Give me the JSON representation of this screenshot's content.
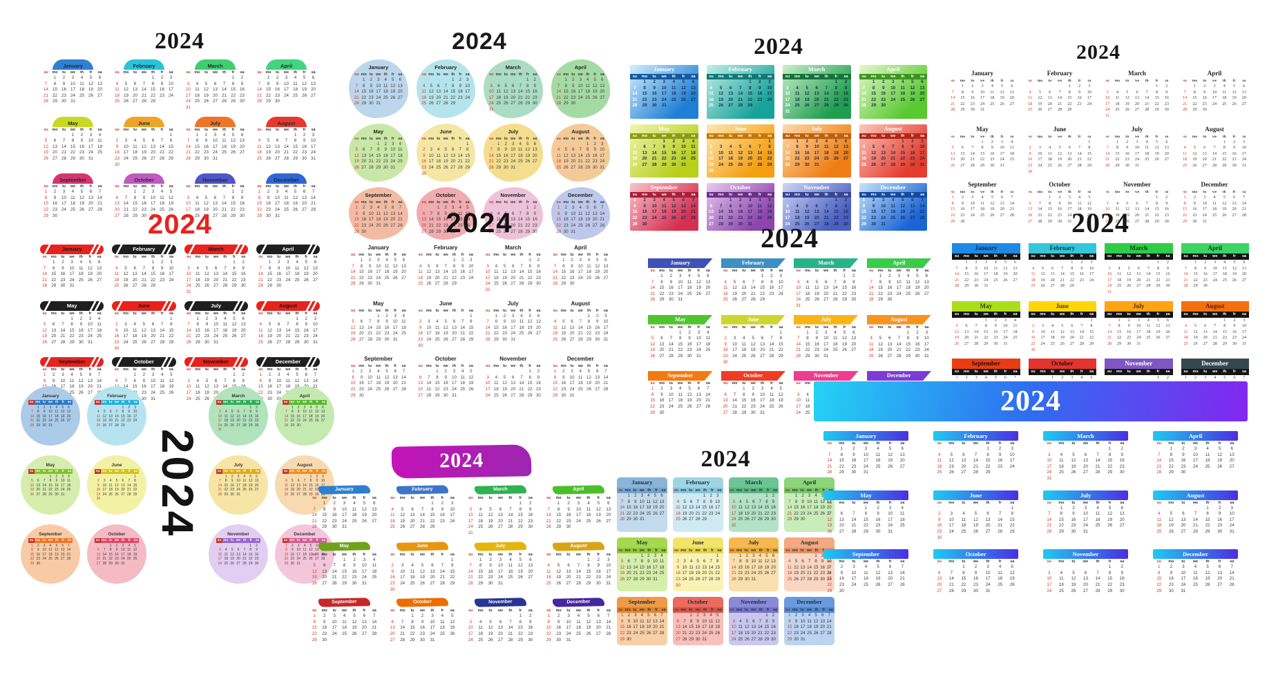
{
  "weekdays": [
    "su",
    "mo",
    "tu",
    "we",
    "th",
    "fr",
    "sa"
  ],
  "colors": {
    "sunday_red": "#c8372d"
  },
  "months": [
    {
      "name": "January",
      "days": 31,
      "start": 1
    },
    {
      "name": "February",
      "days": 29,
      "start": 4
    },
    {
      "name": "March",
      "days": 31,
      "start": 5
    },
    {
      "name": "April",
      "days": 30,
      "start": 1
    },
    {
      "name": "May",
      "days": 31,
      "start": 3
    },
    {
      "name": "June",
      "days": 30,
      "start": 6
    },
    {
      "name": "July",
      "days": 31,
      "start": 1
    },
    {
      "name": "August",
      "days": 31,
      "start": 4
    },
    {
      "name": "September",
      "days": 30,
      "start": 0
    },
    {
      "name": "October",
      "days": 31,
      "start": 2
    },
    {
      "name": "November",
      "days": 30,
      "start": 5
    },
    {
      "name": "December",
      "days": 31,
      "start": 0
    }
  ],
  "panels": [
    {
      "name": "dome-headers",
      "title": "2024",
      "title_color": "#161616",
      "month_colors": [
        [
          "#2f80d2"
        ],
        [
          "#29c3d8"
        ],
        [
          "#3ecf6e"
        ],
        [
          "#43d47f"
        ],
        [
          "#c9d825"
        ],
        [
          "#f0a424"
        ],
        [
          "#ef7426"
        ],
        [
          "#e8382b"
        ],
        [
          "#d63470"
        ],
        [
          "#c05ac0"
        ],
        [
          "#5056c8"
        ],
        [
          "#2f66d2"
        ]
      ]
    },
    {
      "name": "pastel-blobs",
      "title": "2024",
      "title_color": "#1a1a1a",
      "month_colors": [
        [
          "#bcd6ec"
        ],
        [
          "#b6e4ec"
        ],
        [
          "#abdcc4"
        ],
        [
          "#a4dba4"
        ],
        [
          "#c9e7a6"
        ],
        [
          "#f4e7a4"
        ],
        [
          "#f4dd8e"
        ],
        [
          "#f4ca9a"
        ],
        [
          "#f2bca4"
        ],
        [
          "#f0acb0"
        ],
        [
          "#eec2da"
        ],
        [
          "#bec8ec"
        ]
      ]
    },
    {
      "name": "gradient-blocks",
      "title": "2024",
      "title_color": "#161616",
      "month_colors": [
        [
          "#1f7fd4",
          "#155a9e",
          "#d2effe"
        ],
        [
          "#18a39a",
          "#0e7a74",
          "#c2efe8"
        ],
        [
          "#1f9e50",
          "#14733a",
          "#c9efc9"
        ],
        [
          "#58c92f",
          "#3d9420",
          "#e3f8c9"
        ],
        [
          "#b8cf1b",
          "#8a9c10",
          "#eff5b2"
        ],
        [
          "#f59e0f",
          "#c47a08",
          "#fce8b2"
        ],
        [
          "#ef7d13",
          "#bf5f0c",
          "#fcdaaa"
        ],
        [
          "#e43c2f",
          "#b32619",
          "#fcc8ba"
        ],
        [
          "#d63050",
          "#a81f3a",
          "#f9c3ca"
        ],
        [
          "#8e44ad",
          "#6a2f85",
          "#e7caef"
        ],
        [
          "#4a5fc1",
          "#364694",
          "#ced6f3"
        ],
        [
          "#1b66d6",
          "#124a9e",
          "#c6e3f9"
        ]
      ]
    },
    {
      "name": "plain-serif",
      "title": "2024",
      "title_color": "#161616",
      "month_colors": null
    },
    {
      "name": "red-black-striped-bars",
      "title": "2024",
      "title_color": "#e8221d",
      "month_colors": [
        [
          "#e8221c",
          "#141414"
        ],
        [
          "#1f1f1f",
          "#ffffff"
        ],
        [
          "#e8221c",
          "#141414"
        ],
        [
          "#1f1f1f",
          "#ffffff"
        ],
        [
          "#1f1f1f",
          "#ffffff"
        ],
        [
          "#e8221c",
          "#141414"
        ],
        [
          "#1f1f1f",
          "#ffffff"
        ],
        [
          "#e8221c",
          "#141414"
        ],
        [
          "#e8221c",
          "#141414"
        ],
        [
          "#1f1f1f",
          "#ffffff"
        ],
        [
          "#e8221c",
          "#141414"
        ],
        [
          "#1f1f1f",
          "#ffffff"
        ]
      ]
    },
    {
      "name": "plain-sans",
      "title": "2024",
      "title_color": "#111111",
      "month_colors": null
    },
    {
      "name": "pennant-flags",
      "title": "2024",
      "title_color": "#161616",
      "month_colors": [
        [
          "#3f51b5"
        ],
        [
          "#3d8fc4"
        ],
        [
          "#27b389"
        ],
        [
          "#38cc49"
        ],
        [
          "#4fc42f"
        ],
        [
          "#ccd62f"
        ],
        [
          "#fbb417"
        ],
        [
          "#f7941f"
        ],
        [
          "#f27a10"
        ],
        [
          "#ef3c25"
        ],
        [
          "#ee3d8e"
        ],
        [
          "#7a3cd4"
        ]
      ]
    },
    {
      "name": "color-bars-black-week",
      "title": "2024",
      "title_color": "#161616",
      "month_colors": [
        [
          "#1e88e5",
          "#0d2b4e"
        ],
        [
          "#35c6da",
          "#0d3a42"
        ],
        [
          "#2ecc49",
          "#0d3a16"
        ],
        [
          "#3bd465",
          "#0d3a16"
        ],
        [
          "#abdd18",
          "#334010"
        ],
        [
          "#ffd60a",
          "#4a3c06"
        ],
        [
          "#ffa313",
          "#4a2f06"
        ],
        [
          "#f2710e",
          "#5e1d04"
        ],
        [
          "#ea3c12",
          "#201008"
        ],
        [
          "#e5332e",
          "#201008"
        ],
        [
          "#7e57c2",
          "#ffffff"
        ],
        [
          "#37474f",
          "#ffffff"
        ]
      ]
    },
    {
      "name": "circles-vertical-year",
      "title": "2024",
      "title_color": "#131313",
      "month_colors": [
        [
          "#2f78c8",
          "#abcbe9"
        ],
        [
          "#25b2d8",
          "#b7e3f0"
        ],
        [
          "#2fae58",
          "#b1e3bd"
        ],
        [
          "#57b82f",
          "#c4eab2"
        ],
        [
          "#7fc227",
          "#d6edac"
        ],
        [
          "#d4c415",
          "#f3f1a4"
        ],
        [
          "#e8a817",
          "#f7e5a6"
        ],
        [
          "#ef8f20",
          "#f8dab0"
        ],
        [
          "#ef7527",
          "#f8cba6"
        ],
        [
          "#e04868",
          "#f4bbc4"
        ],
        [
          "#9866cc",
          "#e1cef1"
        ],
        [
          "#cf5f94",
          "#f3c6db"
        ]
      ]
    },
    {
      "name": "grunge-brush",
      "title": "2024",
      "title_color": "#ffffff",
      "banner_gradient": [
        "#c413b8",
        "#9c27b0"
      ],
      "month_colors": [
        [
          "#2f7fd0"
        ],
        [
          "#3d74c9"
        ],
        [
          "#2eb34e"
        ],
        [
          "#4bbf2a"
        ],
        [
          "#6fa31a"
        ],
        [
          "#e8960f"
        ],
        [
          "#e3b50e"
        ],
        [
          "#d9a414"
        ],
        [
          "#c62828"
        ],
        [
          "#ef6c00"
        ],
        [
          "#283593"
        ],
        [
          "#4527a0"
        ]
      ]
    },
    {
      "name": "two-tone-blocks",
      "title": "2024",
      "title_color": "#161616",
      "month_colors": [
        [
          "#8ab4d8",
          "#74a4cc",
          "#c3daec"
        ],
        [
          "#9fd4e4",
          "#88c4d8",
          "#cfeaf2"
        ],
        [
          "#6cc592",
          "#58b47e",
          "#b4e2c6"
        ],
        [
          "#8ed47a",
          "#78c464",
          "#c8ecba"
        ],
        [
          "#a7d84e",
          "#92c83a",
          "#d6eeab"
        ],
        [
          "#f2e46a",
          "#e2d24e",
          "#faf2b4"
        ],
        [
          "#f4b84e",
          "#e4a438",
          "#fadfae"
        ],
        [
          "#f4a884",
          "#e49268",
          "#fad6c2"
        ],
        [
          "#f09a48",
          "#e08430",
          "#f8d0a8"
        ],
        [
          "#ec6a5e",
          "#d85448",
          "#f8c0ba"
        ],
        [
          "#8a8ad8",
          "#7474c8",
          "#c8c8ee"
        ],
        [
          "#6a9ade",
          "#5488ce",
          "#bcd4f2"
        ]
      ]
    },
    {
      "name": "gradient-banner-bars",
      "title": "2024",
      "title_color": "#ffffff",
      "banner_gradient": [
        "#25d2f5",
        "#2f6df0",
        "#8426f0"
      ],
      "header_gradient": [
        "#1fc9f2",
        "#4b2fe2"
      ],
      "month_colors": null
    }
  ]
}
